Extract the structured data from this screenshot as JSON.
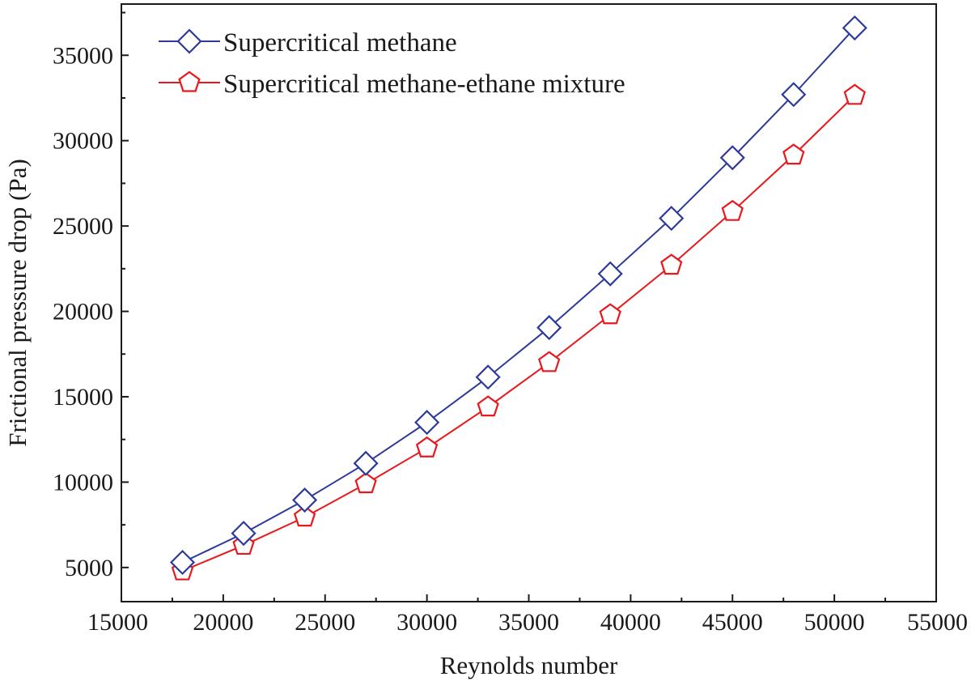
{
  "chart_data": {
    "type": "line",
    "xlabel": "Reynolds number",
    "ylabel": "Frictional pressure drop (Pa)",
    "xlim": [
      15000,
      55000
    ],
    "ylim": [
      3000,
      38000
    ],
    "x_ticks": [
      15000,
      20000,
      25000,
      30000,
      35000,
      40000,
      45000,
      50000,
      55000
    ],
    "y_ticks": [
      5000,
      10000,
      15000,
      20000,
      25000,
      30000,
      35000
    ],
    "x_tick_labels": [
      "15000",
      "20000",
      "25000",
      "30000",
      "35000",
      "40000",
      "45000",
      "50000",
      "55000"
    ],
    "y_tick_labels": [
      "5000",
      "10000",
      "15000",
      "20000",
      "25000",
      "30000",
      "35000"
    ],
    "grid": false,
    "legend_position": "top-left",
    "x": [
      18000,
      21000,
      24000,
      27000,
      30000,
      33000,
      36000,
      39000,
      42000,
      45000,
      48000,
      51000
    ],
    "series": [
      {
        "name": "Supercritical methane",
        "color": "#2e3a9a",
        "marker": "diamond",
        "values": [
          5300,
          7000,
          8950,
          11100,
          13500,
          16150,
          19050,
          22200,
          25450,
          29000,
          32700,
          36600
        ]
      },
      {
        "name": "Supercritical methane-ethane mixture",
        "color": "#e8181c",
        "marker": "pentagon",
        "values": [
          4800,
          6300,
          7950,
          9900,
          12000,
          14400,
          17000,
          19800,
          22700,
          25850,
          29150,
          32650
        ]
      }
    ]
  }
}
